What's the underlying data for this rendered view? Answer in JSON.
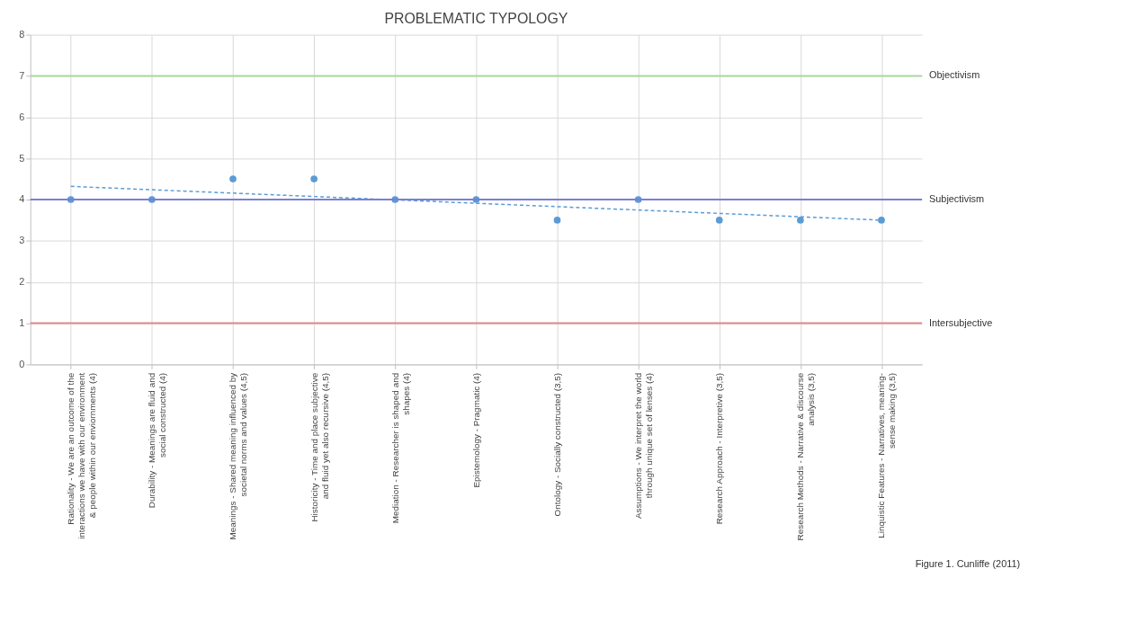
{
  "chart_data": {
    "type": "scatter",
    "title": "PROBLEMATIC TYPOLOGY",
    "categories": [
      "Rationality - We are an outcome of the interactions we have with our environment & people within our enviornments (4)",
      "Durability - Meanings are fluid  and social constructed (4)",
      "Meanings - Shared meaning influenced by societal norms and values (4,5)",
      "Historicity - Time and place subjective and fluid yet also recursive (4,5)",
      "Mediation - Researcher is shaped and shapes (4)",
      "Epistemology - Pragmatic (4)",
      "Ontology - Socially constructed (3,5)",
      "Assumptions - We interpret the world through unique set of lenses (4)",
      "Research Approach - Interpretive (3,5)",
      "Research Methods - Narrative & discourse analysis (3,5)",
      "Linquistic Features - Narratives, meaning-sense making (3,5)"
    ],
    "series": [
      {
        "color": "#5b9bd5",
        "marker": "circle",
        "values": [
          4,
          4,
          4.5,
          4.5,
          4,
          4,
          3.5,
          4,
          3.5,
          3.5,
          3.5
        ]
      },
      {
        "type": "line",
        "color": "#5b9bd5",
        "line_style": "dashed",
        "x": [
          "Rationality - We are an outcome of the interactions we have with our environment & people within our enviornments (4)",
          "Linquistic Features - Narratives, meaning-sense making (3,5)"
        ],
        "values": [
          4.32,
          3.5
        ]
      }
    ],
    "ylim": [
      0,
      8
    ],
    "yticks": [
      0,
      1,
      2,
      3,
      4,
      5,
      6,
      7,
      8
    ],
    "grid": true,
    "ref_lines": [
      {
        "axis": "y",
        "value": 7,
        "label": "Objectivism",
        "color": "#a9d9a0"
      },
      {
        "axis": "y",
        "value": 4,
        "label": "Subjectivism",
        "color": "#7b7fd4"
      },
      {
        "axis": "y",
        "value": 1,
        "label": "Intersubjective",
        "color": "#e08a8a"
      }
    ],
    "annotations": [
      "Figure 1. Cunliffe (2011)"
    ]
  }
}
